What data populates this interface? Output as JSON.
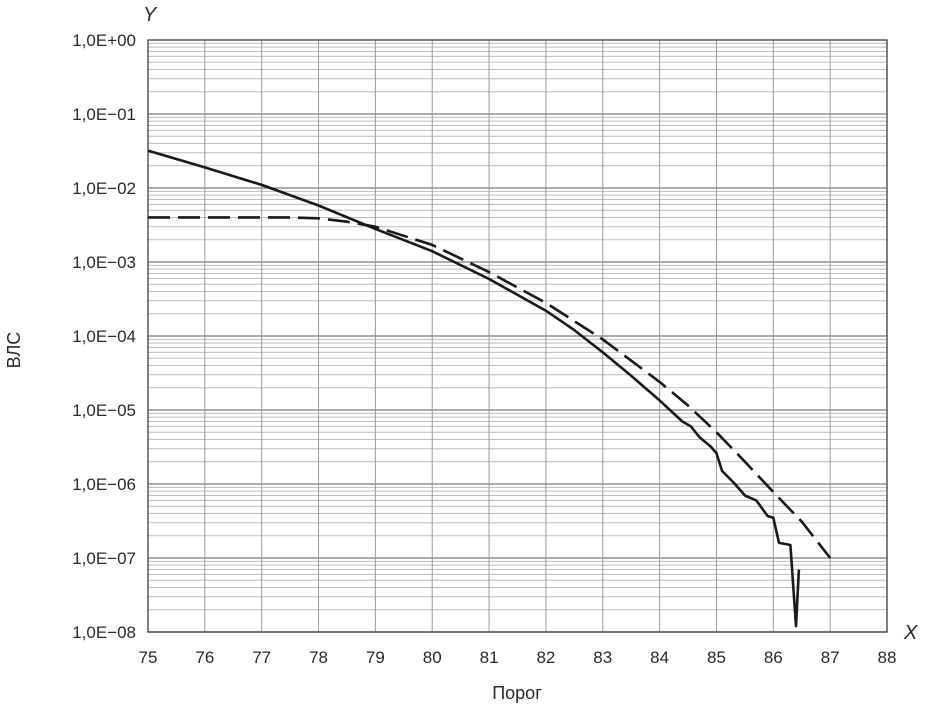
{
  "chart_data": {
    "type": "line",
    "xlabel": "Порог",
    "ylabel": "ВЛС",
    "x_axis_letter": "X",
    "y_axis_letter": "Y",
    "xlim": [
      75,
      88
    ],
    "ylim": [
      1e-08,
      1
    ],
    "y_scale": "log",
    "grid": true,
    "x_ticks": [
      "75",
      "76",
      "77",
      "78",
      "79",
      "80",
      "81",
      "82",
      "83",
      "84",
      "85",
      "86",
      "87",
      "88"
    ],
    "y_ticks": [
      "1,0E+00",
      "1,0E−01",
      "1,0E−02",
      "1,0E−03",
      "1,0E−04",
      "1,0E−05",
      "1,0E−06",
      "1,0E−07",
      "1,0E−08"
    ],
    "series": [
      {
        "style": "solid",
        "color": "#1a1a1a",
        "x": [
          75,
          76,
          77,
          78,
          79,
          80,
          81,
          82,
          82.5,
          83,
          83.5,
          84,
          84.4,
          84.55,
          84.7,
          84.9,
          85.0,
          85.1,
          85.3,
          85.5,
          85.7,
          85.9,
          86.0,
          86.1,
          86.2,
          86.3,
          86.4,
          86.45
        ],
        "y": [
          0.032,
          0.019,
          0.011,
          0.0058,
          0.0028,
          0.0014,
          0.00059,
          0.00022,
          0.00012,
          6e-05,
          2.9e-05,
          1.35e-05,
          7e-06,
          6e-06,
          4.3e-06,
          3.2e-06,
          2.6e-06,
          1.5e-06,
          1.05e-06,
          7e-07,
          6e-07,
          3.7e-07,
          3.5e-07,
          1.6e-07,
          1.55e-07,
          1.5e-07,
          1.2e-08,
          7e-08
        ]
      },
      {
        "style": "dashed",
        "color": "#1a1a1a",
        "x": [
          75,
          76,
          77,
          77.5,
          78,
          78.5,
          79,
          80,
          81,
          82,
          83,
          84,
          84.5,
          85,
          85.5,
          86,
          86.5,
          87
        ],
        "y": [
          0.004,
          0.004,
          0.004,
          0.004,
          0.0039,
          0.0035,
          0.003,
          0.0017,
          0.00073,
          0.00028,
          9e-05,
          2.4e-05,
          1.15e-05,
          5e-06,
          2e-06,
          7.8e-07,
          3.1e-07,
          1e-07
        ]
      }
    ]
  }
}
